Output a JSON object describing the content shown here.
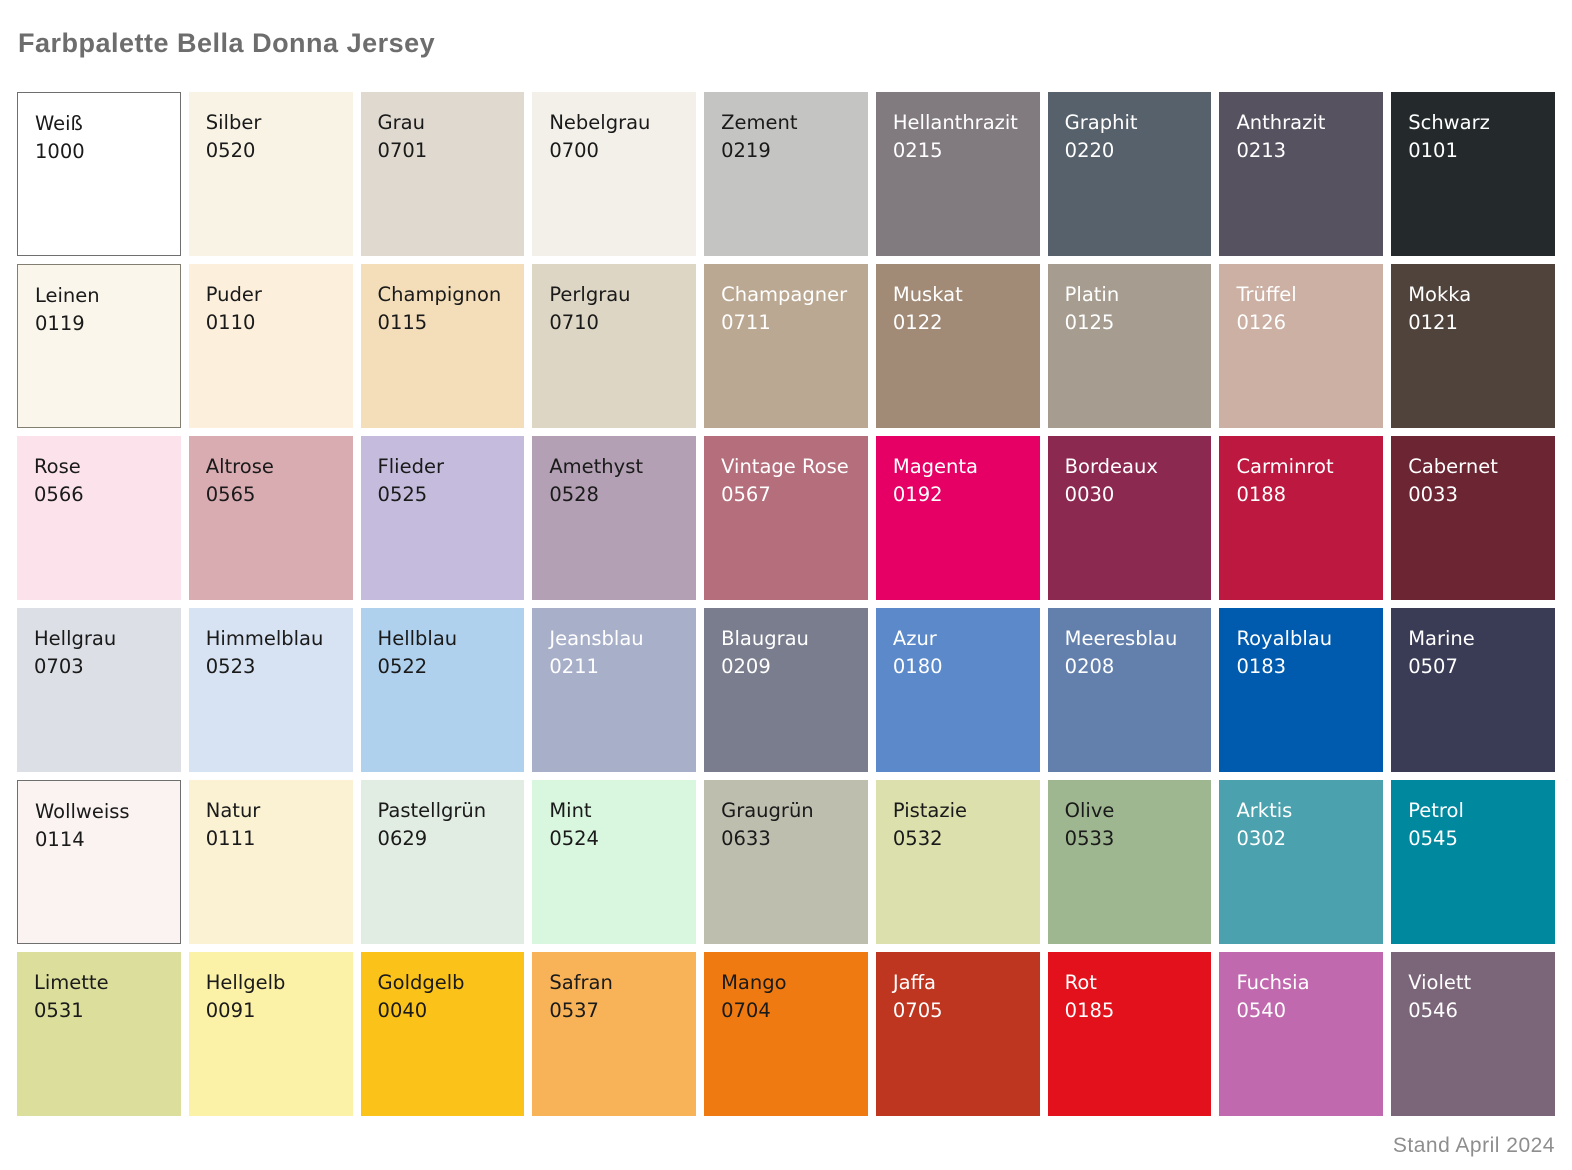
{
  "title": "Farbpalette Bella Donna Jersey",
  "footer": "Stand April 2024",
  "palette": {
    "rows": [
      [
        {
          "name": "Weiß",
          "code": "1000",
          "bg": "#FFFFFF",
          "fg": "#1A1A1A",
          "border": "#6F6F6F"
        },
        {
          "name": "Silber",
          "code": "0520",
          "bg": "#F8F3E5",
          "fg": "#1A1A1A"
        },
        {
          "name": "Grau",
          "code": "0701",
          "bg": "#DFD9D0",
          "fg": "#1A1A1A"
        },
        {
          "name": "Nebelgrau",
          "code": "0700",
          "bg": "#F2F0E9",
          "fg": "#1A1A1A"
        },
        {
          "name": "Zement",
          "code": "0219",
          "bg": "#C4C4C2",
          "fg": "#1A1A1A"
        },
        {
          "name": "Hellanthrazit",
          "code": "0215",
          "bg": "#817B80",
          "fg": "#FFFFFF"
        },
        {
          "name": "Graphit",
          "code": "0220",
          "bg": "#56616C",
          "fg": "#FFFFFF"
        },
        {
          "name": "Anthrazit",
          "code": "0213",
          "bg": "#575260",
          "fg": "#FFFFFF"
        },
        {
          "name": "Schwarz",
          "code": "0101",
          "bg": "#242A2B",
          "fg": "#FFFFFF"
        }
      ],
      [
        {
          "name": "Leinen",
          "code": "0119",
          "bg": "#FAF6EB",
          "fg": "#1A1A1A",
          "border": "#837E72"
        },
        {
          "name": "Puder",
          "code": "0110",
          "bg": "#FCEFDC",
          "fg": "#1A1A1A"
        },
        {
          "name": "Champignon",
          "code": "0115",
          "bg": "#F3DEB9",
          "fg": "#1A1A1A"
        },
        {
          "name": "Perlgrau",
          "code": "0710",
          "bg": "#DED6C5",
          "fg": "#1A1A1A"
        },
        {
          "name": "Champagner",
          "code": "0711",
          "bg": "#BBA892",
          "fg": "#FFFFFF"
        },
        {
          "name": "Muskat",
          "code": "0122",
          "bg": "#A18A76",
          "fg": "#FFFFFF"
        },
        {
          "name": "Platin",
          "code": "0125",
          "bg": "#A69D90",
          "fg": "#FFFFFF"
        },
        {
          "name": "Trüffel",
          "code": "0126",
          "bg": "#CBB0A3",
          "fg": "#FFFFFF"
        },
        {
          "name": "Mokka",
          "code": "0121",
          "bg": "#4F433C",
          "fg": "#FFFFFF"
        }
      ],
      [
        {
          "name": "Rose",
          "code": "0566",
          "bg": "#FCE3EB",
          "fg": "#1A1A1A"
        },
        {
          "name": "Altrose",
          "code": "0565",
          "bg": "#D9ACB2",
          "fg": "#1A1A1A"
        },
        {
          "name": "Flieder",
          "code": "0525",
          "bg": "#C5BCDD",
          "fg": "#1A1A1A"
        },
        {
          "name": "Amethyst",
          "code": "0528",
          "bg": "#B3A0B4",
          "fg": "#1A1A1A"
        },
        {
          "name": "Vintage Rose",
          "code": "0567",
          "bg": "#B56F7C",
          "fg": "#FFFFFF"
        },
        {
          "name": "Magenta",
          "code": "0192",
          "bg": "#E60066",
          "fg": "#FFFFFF"
        },
        {
          "name": "Bordeaux",
          "code": "0030",
          "bg": "#8C2950",
          "fg": "#FFFFFF"
        },
        {
          "name": "Carminrot",
          "code": "0188",
          "bg": "#BD1940",
          "fg": "#FFFFFF"
        },
        {
          "name": "Cabernet",
          "code": "0033",
          "bg": "#6B2533",
          "fg": "#FFFFFF"
        }
      ],
      [
        {
          "name": "Hellgrau",
          "code": "0703",
          "bg": "#DCE0E6",
          "fg": "#1A1A1A"
        },
        {
          "name": "Himmelblau",
          "code": "0523",
          "bg": "#D7E3F3",
          "fg": "#1A1A1A"
        },
        {
          "name": "Hellblau",
          "code": "0522",
          "bg": "#B0D1EE",
          "fg": "#1A1A1A"
        },
        {
          "name": "Jeansblau",
          "code": "0211",
          "bg": "#A8AFC9",
          "fg": "#FFFFFF"
        },
        {
          "name": "Blaugrau",
          "code": "0209",
          "bg": "#7A7D8D",
          "fg": "#FFFFFF"
        },
        {
          "name": "Azur",
          "code": "0180",
          "bg": "#5B89C9",
          "fg": "#FFFFFF"
        },
        {
          "name": "Meeresblau",
          "code": "0208",
          "bg": "#6380AD",
          "fg": "#FFFFFF"
        },
        {
          "name": "Royalblau",
          "code": "0183",
          "bg": "#005AAD",
          "fg": "#FFFFFF"
        },
        {
          "name": "Marine",
          "code": "0507",
          "bg": "#3A3B55",
          "fg": "#FFFFFF"
        }
      ],
      [
        {
          "name": "Wollweiss",
          "code": "0114",
          "bg": "#FBF3F2",
          "fg": "#1A1A1A",
          "border": "#6F6F6F"
        },
        {
          "name": "Natur",
          "code": "0111",
          "bg": "#FBF2D4",
          "fg": "#1A1A1A"
        },
        {
          "name": "Pastellgrün",
          "code": "0629",
          "bg": "#E1ECE3",
          "fg": "#1A1A1A"
        },
        {
          "name": "Mint",
          "code": "0524",
          "bg": "#D9F6DF",
          "fg": "#1A1A1A"
        },
        {
          "name": "Graugrün",
          "code": "0633",
          "bg": "#BEBEAF",
          "fg": "#1A1A1A"
        },
        {
          "name": "Pistazie",
          "code": "0532",
          "bg": "#DCE0AD",
          "fg": "#1A1A1A"
        },
        {
          "name": "Olive",
          "code": "0533",
          "bg": "#9EB790",
          "fg": "#1A1A1A"
        },
        {
          "name": "Arktis",
          "code": "0302",
          "bg": "#4BA1AD",
          "fg": "#FFFFFF"
        },
        {
          "name": "Petrol",
          "code": "0545",
          "bg": "#00889F",
          "fg": "#FFFFFF"
        }
      ],
      [
        {
          "name": "Limette",
          "code": "0531",
          "bg": "#DCDE9B",
          "fg": "#1A1A1A"
        },
        {
          "name": "Hellgelb",
          "code": "0091",
          "bg": "#FBF1A7",
          "fg": "#1A1A1A"
        },
        {
          "name": "Goldgelb",
          "code": "0040",
          "bg": "#FBC31A",
          "fg": "#1A1A1A"
        },
        {
          "name": "Safran",
          "code": "0537",
          "bg": "#F8B358",
          "fg": "#1A1A1A"
        },
        {
          "name": "Mango",
          "code": "0704",
          "bg": "#EF7A11",
          "fg": "#1A1A1A"
        },
        {
          "name": "Jaffa",
          "code": "0705",
          "bg": "#BF3620",
          "fg": "#FFFFFF"
        },
        {
          "name": "Rot",
          "code": "0185",
          "bg": "#E3111C",
          "fg": "#FFFFFF"
        },
        {
          "name": "Fuchsia",
          "code": "0540",
          "bg": "#C169AF",
          "fg": "#FFFFFF"
        },
        {
          "name": "Violett",
          "code": "0546",
          "bg": "#7B6579",
          "fg": "#FFFFFF"
        }
      ]
    ]
  }
}
